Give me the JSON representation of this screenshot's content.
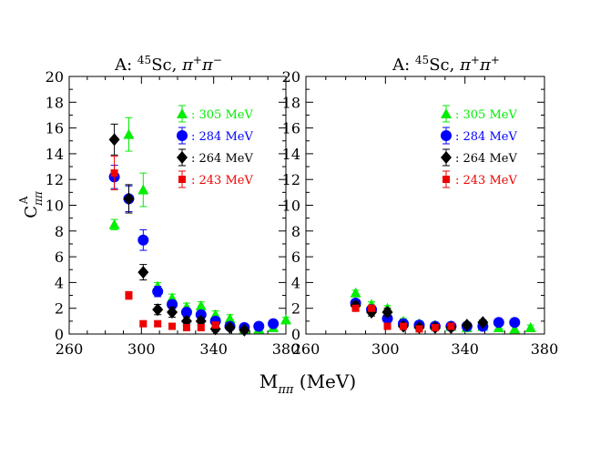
{
  "chart_data": [
    {
      "type": "scatter",
      "title_prefix": "A: ",
      "title_sup": "45",
      "title_nucleus": "Sc, ",
      "title_channel": "π",
      "title_charge1": "+",
      "title_channel2": "π",
      "title_charge2": "−",
      "ylabel_main": "C",
      "ylabel_sub": "ππ",
      "ylabel_sup": "A",
      "xlim": [
        260,
        380
      ],
      "ylim": [
        0,
        20
      ],
      "xticks": [
        260,
        300,
        340,
        380
      ],
      "yticks": [
        0,
        2,
        4,
        6,
        8,
        10,
        12,
        14,
        16,
        18,
        20
      ],
      "legend_position": "top-right",
      "series": [
        {
          "name": ": 305 MeV",
          "marker": "triangle",
          "color": "#00ee00",
          "points": [
            {
              "x": 285,
              "y": 8.5,
              "e": 0.4
            },
            {
              "x": 293,
              "y": 15.5,
              "e": 1.3
            },
            {
              "x": 301,
              "y": 11.2,
              "e": 1.3
            },
            {
              "x": 309,
              "y": 3.7,
              "e": 0.3
            },
            {
              "x": 317,
              "y": 2.8,
              "e": 0.3
            },
            {
              "x": 325,
              "y": 2.1,
              "e": 0.3
            },
            {
              "x": 333,
              "y": 2.2,
              "e": 0.3
            },
            {
              "x": 341,
              "y": 1.5,
              "e": 0.3
            },
            {
              "x": 349,
              "y": 1.2,
              "e": 0.3
            },
            {
              "x": 357,
              "y": 0.4,
              "e": 0.2
            },
            {
              "x": 365,
              "y": 0.4,
              "e": 0.2
            },
            {
              "x": 373,
              "y": 0.5,
              "e": 0.2
            },
            {
              "x": 380,
              "y": 1.1,
              "e": 0.2
            }
          ]
        },
        {
          "name": ": 284 MeV",
          "marker": "circle",
          "color": "#0000ff",
          "points": [
            {
              "x": 285,
              "y": 12.2,
              "e": 0.9
            },
            {
              "x": 293,
              "y": 10.5,
              "e": 1.0
            },
            {
              "x": 301,
              "y": 7.3,
              "e": 0.8
            },
            {
              "x": 309,
              "y": 3.3,
              "e": 0.4
            },
            {
              "x": 317,
              "y": 2.3,
              "e": 0.3
            },
            {
              "x": 325,
              "y": 1.7,
              "e": 0.3
            },
            {
              "x": 333,
              "y": 1.5,
              "e": 0.3
            },
            {
              "x": 341,
              "y": 1.0,
              "e": 0.3
            },
            {
              "x": 349,
              "y": 0.6,
              "e": 0.2
            },
            {
              "x": 357,
              "y": 0.5,
              "e": 0.2
            },
            {
              "x": 365,
              "y": 0.6,
              "e": 0.2
            },
            {
              "x": 373,
              "y": 0.8,
              "e": 0.2
            }
          ]
        },
        {
          "name": ": 264 MeV",
          "marker": "diamond",
          "color": "#000000",
          "points": [
            {
              "x": 285,
              "y": 15.1,
              "e": 1.2
            },
            {
              "x": 293,
              "y": 10.5,
              "e": 1.1
            },
            {
              "x": 301,
              "y": 4.8,
              "e": 0.6
            },
            {
              "x": 309,
              "y": 1.9,
              "e": 0.4
            },
            {
              "x": 317,
              "y": 1.7,
              "e": 0.4
            },
            {
              "x": 325,
              "y": 1.0,
              "e": 0.3
            },
            {
              "x": 333,
              "y": 1.0,
              "e": 0.3
            },
            {
              "x": 341,
              "y": 0.4,
              "e": 0.2
            },
            {
              "x": 349,
              "y": 0.5,
              "e": 0.2
            },
            {
              "x": 357,
              "y": 0.3,
              "e": 0.2
            }
          ]
        },
        {
          "name": ": 243 MeV",
          "marker": "square",
          "color": "#ee0000",
          "points": [
            {
              "x": 285,
              "y": 12.5,
              "e": 1.3
            },
            {
              "x": 293,
              "y": 3.0,
              "e": 0.3
            },
            {
              "x": 301,
              "y": 0.8,
              "e": 0.2
            },
            {
              "x": 309,
              "y": 0.8,
              "e": 0.2
            },
            {
              "x": 317,
              "y": 0.6,
              "e": 0.2
            },
            {
              "x": 325,
              "y": 0.5,
              "e": 0.2
            },
            {
              "x": 333,
              "y": 0.5,
              "e": 0.2
            },
            {
              "x": 341,
              "y": 0.7,
              "e": 0.2
            }
          ]
        }
      ]
    },
    {
      "type": "scatter",
      "title_prefix": "A: ",
      "title_sup": "45",
      "title_nucleus": "Sc, ",
      "title_channel": "π",
      "title_charge1": "+",
      "title_channel2": "π",
      "title_charge2": "+",
      "xlim": [
        260,
        380
      ],
      "ylim": [
        0,
        20
      ],
      "xticks": [
        260,
        300,
        340,
        380
      ],
      "yticks": [
        0,
        2,
        4,
        6,
        8,
        10,
        12,
        14,
        16,
        18,
        20
      ],
      "legend_position": "top-right",
      "series": [
        {
          "name": ": 305 MeV",
          "marker": "triangle",
          "color": "#00ee00",
          "points": [
            {
              "x": 285,
              "y": 3.2,
              "e": 0.2
            },
            {
              "x": 293,
              "y": 2.3,
              "e": 0.2
            },
            {
              "x": 301,
              "y": 2.0,
              "e": 0.2
            },
            {
              "x": 309,
              "y": 1.0,
              "e": 0.2
            },
            {
              "x": 317,
              "y": 0.8,
              "e": 0.2
            },
            {
              "x": 325,
              "y": 0.7,
              "e": 0.2
            },
            {
              "x": 333,
              "y": 0.6,
              "e": 0.2
            },
            {
              "x": 341,
              "y": 0.5,
              "e": 0.2
            },
            {
              "x": 349,
              "y": 0.6,
              "e": 0.2
            },
            {
              "x": 357,
              "y": 0.5,
              "e": 0.2
            },
            {
              "x": 365,
              "y": 0.4,
              "e": 0.2
            },
            {
              "x": 373,
              "y": 0.5,
              "e": 0.2
            }
          ]
        },
        {
          "name": ": 284 MeV",
          "marker": "circle",
          "color": "#0000ff",
          "points": [
            {
              "x": 285,
              "y": 2.4,
              "e": 0.3
            },
            {
              "x": 293,
              "y": 1.9,
              "e": 0.3
            },
            {
              "x": 301,
              "y": 1.2,
              "e": 0.2
            },
            {
              "x": 309,
              "y": 0.8,
              "e": 0.2
            },
            {
              "x": 317,
              "y": 0.7,
              "e": 0.2
            },
            {
              "x": 325,
              "y": 0.6,
              "e": 0.2
            },
            {
              "x": 333,
              "y": 0.6,
              "e": 0.2
            },
            {
              "x": 341,
              "y": 0.6,
              "e": 0.2
            },
            {
              "x": 349,
              "y": 0.6,
              "e": 0.2
            },
            {
              "x": 357,
              "y": 0.9,
              "e": 0.2
            },
            {
              "x": 365,
              "y": 0.9,
              "e": 0.2
            }
          ]
        },
        {
          "name": ": 264 MeV",
          "marker": "diamond",
          "color": "#000000",
          "points": [
            {
              "x": 285,
              "y": 2.2,
              "e": 0.3
            },
            {
              "x": 293,
              "y": 1.7,
              "e": 0.3
            },
            {
              "x": 301,
              "y": 1.7,
              "e": 0.3
            },
            {
              "x": 309,
              "y": 0.6,
              "e": 0.2
            },
            {
              "x": 317,
              "y": 0.5,
              "e": 0.2
            },
            {
              "x": 325,
              "y": 0.5,
              "e": 0.2
            },
            {
              "x": 333,
              "y": 0.5,
              "e": 0.2
            },
            {
              "x": 341,
              "y": 0.7,
              "e": 0.2
            },
            {
              "x": 349,
              "y": 0.9,
              "e": 0.2
            }
          ]
        },
        {
          "name": ": 243 MeV",
          "marker": "square",
          "color": "#ee0000",
          "points": [
            {
              "x": 285,
              "y": 2.0,
              "e": 0.2
            },
            {
              "x": 293,
              "y": 2.0,
              "e": 0.2
            },
            {
              "x": 301,
              "y": 0.6,
              "e": 0.2
            },
            {
              "x": 309,
              "y": 0.6,
              "e": 0.2
            },
            {
              "x": 317,
              "y": 0.4,
              "e": 0.2
            },
            {
              "x": 325,
              "y": 0.5,
              "e": 0.2
            },
            {
              "x": 333,
              "y": 0.6,
              "e": 0.2
            }
          ]
        }
      ]
    }
  ],
  "xlabel_main": "M",
  "xlabel_sub": "ππ",
  "xlabel_unit": " (MeV)"
}
